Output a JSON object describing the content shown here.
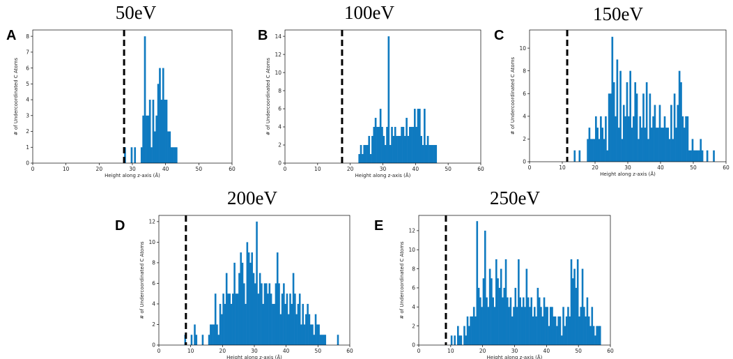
{
  "figure": {
    "background": "#ffffff",
    "bar_color": "#0f7ac0",
    "cutoff_color": "#000000"
  },
  "chart_data": [
    {
      "type": "bar",
      "panel": "A",
      "title": "50eV",
      "xlabel": "Height along z-axis (Å)",
      "ylabel": "# of Undercoordinated C Atoms",
      "xlim": [
        0,
        60
      ],
      "ylim": [
        0,
        8.4
      ],
      "xticks": [
        0,
        10,
        20,
        30,
        40,
        50,
        60
      ],
      "yticks": [
        0,
        1,
        2,
        3,
        4,
        5,
        6,
        7,
        8
      ],
      "bin_width": 0.5,
      "cutoff_x": 27.5,
      "bars": [
        [
          27.5,
          1
        ],
        [
          29.5,
          1
        ],
        [
          30.5,
          1
        ],
        [
          32.5,
          1
        ],
        [
          33,
          3
        ],
        [
          33.5,
          8
        ],
        [
          34,
          3
        ],
        [
          34.5,
          3
        ],
        [
          35,
          4
        ],
        [
          35.5,
          1
        ],
        [
          36,
          4
        ],
        [
          36.5,
          2
        ],
        [
          37,
          3
        ],
        [
          37.5,
          5
        ],
        [
          38,
          6
        ],
        [
          38.5,
          4
        ],
        [
          39,
          6
        ],
        [
          39.5,
          4
        ],
        [
          40,
          4
        ],
        [
          40.5,
          2
        ],
        [
          41,
          2
        ],
        [
          41.5,
          1
        ],
        [
          42,
          1
        ],
        [
          42.5,
          1
        ],
        [
          43,
          1
        ]
      ]
    },
    {
      "type": "bar",
      "panel": "B",
      "title": "100eV",
      "xlabel": "Height along z-axis (Å)",
      "ylabel": "# of Undercoordinated C Atoms",
      "xlim": [
        0,
        60
      ],
      "ylim": [
        0,
        14.7
      ],
      "xticks": [
        0,
        10,
        20,
        30,
        40,
        50,
        60
      ],
      "yticks": [
        0,
        2,
        4,
        6,
        8,
        10,
        12,
        14
      ],
      "bin_width": 0.5,
      "cutoff_x": 17.5,
      "bars": [
        [
          22.5,
          1
        ],
        [
          23,
          2
        ],
        [
          23.5,
          1
        ],
        [
          24,
          2
        ],
        [
          24.5,
          2
        ],
        [
          25,
          2
        ],
        [
          25.5,
          3
        ],
        [
          26,
          1
        ],
        [
          26.5,
          3
        ],
        [
          27,
          4
        ],
        [
          27.5,
          5
        ],
        [
          28,
          4
        ],
        [
          28.5,
          4
        ],
        [
          29,
          6
        ],
        [
          29.5,
          4
        ],
        [
          30,
          3
        ],
        [
          30.5,
          2
        ],
        [
          31,
          4
        ],
        [
          31.5,
          14
        ],
        [
          32,
          2
        ],
        [
          32.5,
          4
        ],
        [
          33,
          3
        ],
        [
          33.5,
          4
        ],
        [
          34,
          3
        ],
        [
          34.5,
          3
        ],
        [
          35,
          3
        ],
        [
          35.5,
          4
        ],
        [
          36,
          4
        ],
        [
          36.5,
          3
        ],
        [
          37,
          5
        ],
        [
          37.5,
          3
        ],
        [
          38,
          4
        ],
        [
          38.5,
          4
        ],
        [
          39,
          4
        ],
        [
          39.5,
          6
        ],
        [
          40,
          4
        ],
        [
          40.5,
          6
        ],
        [
          41,
          6
        ],
        [
          41.5,
          3
        ],
        [
          42,
          2
        ],
        [
          42.5,
          6
        ],
        [
          43,
          2
        ],
        [
          43.5,
          3
        ],
        [
          44,
          2
        ],
        [
          44.5,
          2
        ],
        [
          45,
          2
        ],
        [
          45.5,
          2
        ],
        [
          46,
          2
        ]
      ]
    },
    {
      "type": "bar",
      "panel": "C",
      "title": "150eV",
      "xlabel": "Height along z-axis (Å)",
      "ylabel": "# of Undercoordinated C Atoms",
      "xlim": [
        0,
        60
      ],
      "ylim": [
        0,
        11.6
      ],
      "xticks": [
        0,
        10,
        20,
        30,
        40,
        50,
        60
      ],
      "yticks": [
        0,
        2,
        4,
        6,
        8,
        10
      ],
      "bin_width": 0.5,
      "cutoff_x": 11.5,
      "bars": [
        [
          13.5,
          1
        ],
        [
          15,
          1
        ],
        [
          17.5,
          2
        ],
        [
          18,
          3
        ],
        [
          18.5,
          2
        ],
        [
          19,
          2
        ],
        [
          19.5,
          2
        ],
        [
          20,
          4
        ],
        [
          20.5,
          3
        ],
        [
          21,
          2
        ],
        [
          21.5,
          4
        ],
        [
          22,
          3
        ],
        [
          22.5,
          2
        ],
        [
          23,
          4
        ],
        [
          23.5,
          1
        ],
        [
          24,
          6
        ],
        [
          24.5,
          6
        ],
        [
          25,
          11
        ],
        [
          25.5,
          7
        ],
        [
          26,
          4
        ],
        [
          26.5,
          9
        ],
        [
          27,
          3
        ],
        [
          27.5,
          8
        ],
        [
          28,
          2
        ],
        [
          28.5,
          5
        ],
        [
          29,
          4
        ],
        [
          29.5,
          7
        ],
        [
          30,
          4
        ],
        [
          30.5,
          8
        ],
        [
          31,
          3
        ],
        [
          31.5,
          4
        ],
        [
          32,
          7
        ],
        [
          32.5,
          6
        ],
        [
          33,
          2
        ],
        [
          33.5,
          4
        ],
        [
          34,
          3
        ],
        [
          34.5,
          6
        ],
        [
          35,
          3
        ],
        [
          35.5,
          7
        ],
        [
          36,
          2
        ],
        [
          36.5,
          6
        ],
        [
          37,
          3
        ],
        [
          37.5,
          4
        ],
        [
          38,
          5
        ],
        [
          38.5,
          3
        ],
        [
          39,
          3
        ],
        [
          39.5,
          5
        ],
        [
          40,
          3
        ],
        [
          40.5,
          3
        ],
        [
          41,
          4
        ],
        [
          41.5,
          3
        ],
        [
          42,
          3
        ],
        [
          42.5,
          2
        ],
        [
          43,
          5
        ],
        [
          43.5,
          2
        ],
        [
          44,
          6
        ],
        [
          44.5,
          3
        ],
        [
          45,
          5
        ],
        [
          45.5,
          8
        ],
        [
          46,
          7
        ],
        [
          46.5,
          4
        ],
        [
          47,
          3
        ],
        [
          47.5,
          4
        ],
        [
          48,
          4
        ],
        [
          48.5,
          1
        ],
        [
          49,
          1
        ],
        [
          49.5,
          2
        ],
        [
          50,
          1
        ],
        [
          50.5,
          1
        ],
        [
          51,
          1
        ],
        [
          51.5,
          1
        ],
        [
          52,
          2
        ],
        [
          52.5,
          1
        ],
        [
          54,
          1
        ],
        [
          56,
          1
        ]
      ]
    },
    {
      "type": "bar",
      "panel": "D",
      "title": "200eV",
      "xlabel": "Height along z-axis (Å)",
      "ylabel": "# of Undercoordinated C Atoms",
      "xlim": [
        0,
        60
      ],
      "ylim": [
        0,
        12.6
      ],
      "xticks": [
        0,
        10,
        20,
        30,
        40,
        50,
        60
      ],
      "yticks": [
        0,
        2,
        4,
        6,
        8,
        10,
        12
      ],
      "bin_width": 0.5,
      "cutoff_x": 8.5,
      "bars": [
        [
          8,
          1
        ],
        [
          10,
          1
        ],
        [
          11,
          2
        ],
        [
          11.5,
          1
        ],
        [
          13.5,
          1
        ],
        [
          15.5,
          1
        ],
        [
          16,
          2
        ],
        [
          16.5,
          2
        ],
        [
          17,
          2
        ],
        [
          17.5,
          5
        ],
        [
          18,
          2
        ],
        [
          18.5,
          1
        ],
        [
          19,
          4
        ],
        [
          19.5,
          3
        ],
        [
          20,
          5
        ],
        [
          20.5,
          4
        ],
        [
          21,
          7
        ],
        [
          21.5,
          5
        ],
        [
          22,
          5
        ],
        [
          22.5,
          4
        ],
        [
          23,
          5
        ],
        [
          23.5,
          8
        ],
        [
          24,
          5
        ],
        [
          24.5,
          5
        ],
        [
          25,
          7
        ],
        [
          25.5,
          9
        ],
        [
          26,
          8
        ],
        [
          26.5,
          6
        ],
        [
          27,
          4
        ],
        [
          27.5,
          10
        ],
        [
          28,
          9
        ],
        [
          28.5,
          8
        ],
        [
          29,
          9
        ],
        [
          29.5,
          7
        ],
        [
          30,
          6
        ],
        [
          30.5,
          12
        ],
        [
          31,
          5
        ],
        [
          31.5,
          7
        ],
        [
          32,
          6
        ],
        [
          32.5,
          4
        ],
        [
          33,
          6
        ],
        [
          33.5,
          6
        ],
        [
          34,
          5
        ],
        [
          34.5,
          6
        ],
        [
          35,
          5
        ],
        [
          35.5,
          4
        ],
        [
          36,
          4
        ],
        [
          36.5,
          6
        ],
        [
          37,
          9
        ],
        [
          37.5,
          6
        ],
        [
          38,
          3
        ],
        [
          38.5,
          5
        ],
        [
          39,
          6
        ],
        [
          39.5,
          4
        ],
        [
          40,
          5
        ],
        [
          40.5,
          3
        ],
        [
          41,
          5
        ],
        [
          41.5,
          4
        ],
        [
          42,
          7
        ],
        [
          42.5,
          5
        ],
        [
          43,
          3
        ],
        [
          43.5,
          4
        ],
        [
          44,
          5
        ],
        [
          44.5,
          2
        ],
        [
          45,
          4
        ],
        [
          45.5,
          2
        ],
        [
          46,
          3
        ],
        [
          46.5,
          4
        ],
        [
          47,
          3
        ],
        [
          47.5,
          2
        ],
        [
          48,
          2
        ],
        [
          48.5,
          1
        ],
        [
          49,
          3
        ],
        [
          49.5,
          2
        ],
        [
          50,
          2
        ],
        [
          50.5,
          1
        ],
        [
          51,
          1
        ],
        [
          51.5,
          1
        ],
        [
          52,
          1
        ],
        [
          56,
          1
        ]
      ]
    },
    {
      "type": "bar",
      "panel": "E",
      "title": "250eV",
      "xlabel": "Height along z-axis (Å)",
      "ylabel": "# of Undercoordinated C Atoms",
      "xlim": [
        0,
        60
      ],
      "ylim": [
        0,
        13.6
      ],
      "xticks": [
        0,
        10,
        20,
        30,
        40,
        50,
        60
      ],
      "yticks": [
        0,
        2,
        4,
        6,
        8,
        10,
        12
      ],
      "bin_width": 0.5,
      "cutoff_x": 8.5,
      "bars": [
        [
          10,
          1
        ],
        [
          11,
          1
        ],
        [
          12,
          2
        ],
        [
          12.5,
          1
        ],
        [
          13,
          1
        ],
        [
          14,
          2
        ],
        [
          14.5,
          1
        ],
        [
          15,
          3
        ],
        [
          15.5,
          2
        ],
        [
          16,
          3
        ],
        [
          16.5,
          3
        ],
        [
          17,
          4
        ],
        [
          17.5,
          3
        ],
        [
          18,
          13
        ],
        [
          18.5,
          6
        ],
        [
          19,
          5
        ],
        [
          19.5,
          4
        ],
        [
          20,
          7
        ],
        [
          20.5,
          12
        ],
        [
          21,
          5
        ],
        [
          21.5,
          4
        ],
        [
          22,
          8
        ],
        [
          22.5,
          7
        ],
        [
          23,
          5
        ],
        [
          23.5,
          4
        ],
        [
          24,
          9
        ],
        [
          24.5,
          7
        ],
        [
          25,
          6
        ],
        [
          25.5,
          8
        ],
        [
          26,
          5
        ],
        [
          26.5,
          6
        ],
        [
          27,
          9
        ],
        [
          27.5,
          5
        ],
        [
          28,
          4
        ],
        [
          28.5,
          5
        ],
        [
          29,
          3
        ],
        [
          29.5,
          4
        ],
        [
          30,
          6
        ],
        [
          30.5,
          4
        ],
        [
          31,
          9
        ],
        [
          31.5,
          5
        ],
        [
          32,
          4
        ],
        [
          32.5,
          5
        ],
        [
          33,
          4
        ],
        [
          33.5,
          8
        ],
        [
          34,
          5
        ],
        [
          34.5,
          4
        ],
        [
          35,
          5
        ],
        [
          35.5,
          3
        ],
        [
          36,
          4
        ],
        [
          36.5,
          3
        ],
        [
          37,
          6
        ],
        [
          37.5,
          5
        ],
        [
          38,
          4
        ],
        [
          38.5,
          3
        ],
        [
          39,
          5
        ],
        [
          39.5,
          4
        ],
        [
          40,
          4
        ],
        [
          40.5,
          2
        ],
        [
          41,
          4
        ],
        [
          41.5,
          4
        ],
        [
          42,
          3
        ],
        [
          42.5,
          3
        ],
        [
          43,
          2
        ],
        [
          43.5,
          3
        ],
        [
          44,
          3
        ],
        [
          44.5,
          1
        ],
        [
          45,
          4
        ],
        [
          45.5,
          2
        ],
        [
          46,
          3
        ],
        [
          46.5,
          4
        ],
        [
          47,
          3
        ],
        [
          47.5,
          9
        ],
        [
          48,
          7
        ],
        [
          48.5,
          8
        ],
        [
          49,
          6
        ],
        [
          49.5,
          9
        ],
        [
          50,
          3
        ],
        [
          50.5,
          4
        ],
        [
          51,
          8
        ],
        [
          51.5,
          4
        ],
        [
          52,
          3
        ],
        [
          52.5,
          5
        ],
        [
          53,
          3
        ],
        [
          53.5,
          2
        ],
        [
          54,
          4
        ],
        [
          54.5,
          2
        ],
        [
          55,
          1
        ],
        [
          55.5,
          2
        ],
        [
          56,
          2
        ],
        [
          56.5,
          2
        ]
      ]
    }
  ]
}
